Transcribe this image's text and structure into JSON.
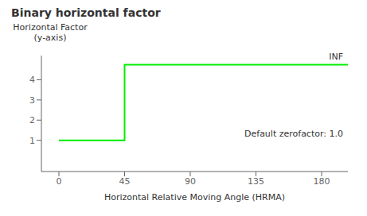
{
  "chart_data": {
    "type": "line",
    "title": "Binary horizontal factor",
    "xlabel": "Horizontal Relative Moving Angle (HRMA)",
    "ylabel": "Horizontal Factor\n(y-axis)",
    "annotations": [
      "INF",
      "Default zerofactor: 1.0"
    ],
    "x": [
      0,
      45,
      45,
      198
    ],
    "values": [
      1,
      1,
      4.75,
      4.75
    ],
    "color": "#00ee00",
    "xlim": [
      -12,
      198
    ],
    "ylim": [
      -0.55,
      5.2
    ],
    "xticks": [
      0,
      45,
      90,
      135,
      180
    ],
    "yticks": [
      1,
      2,
      3,
      4
    ],
    "grid": false
  }
}
